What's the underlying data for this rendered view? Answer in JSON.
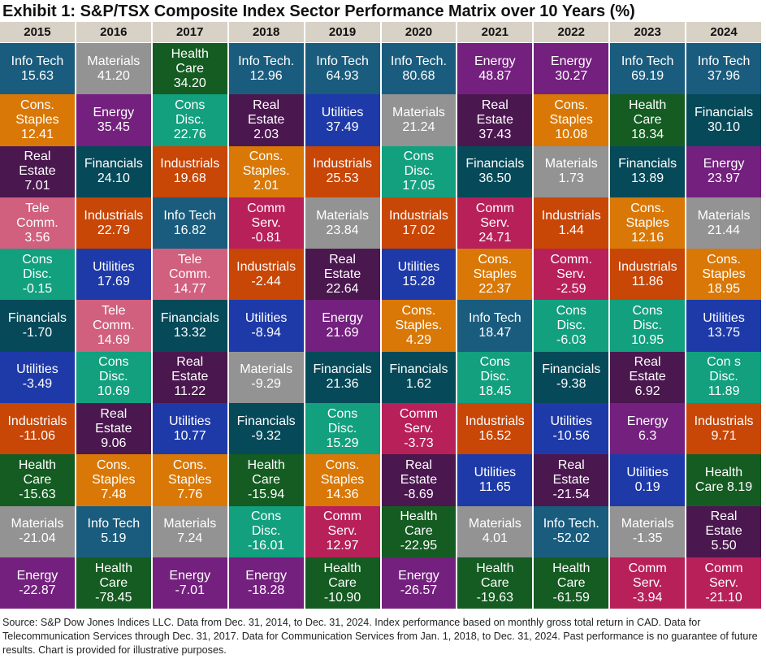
{
  "chart_data": {
    "type": "table",
    "title": "Exhibit 1: S&P/TSX Composite Index Sector Performance Matrix over 10 Years (%)",
    "sector_colors": {
      "Info Tech": "#1a5c7e",
      "Materials": "#939393",
      "Health Care": "#155c22",
      "Cons Staples": "#d97806",
      "Energy": "#74207e",
      "Cons Disc": "#12a07e",
      "Real Estate": "#4a174f",
      "Utilities": "#1e3aa8",
      "Financials": "#064959",
      "Industrials": "#c84606",
      "Tele Comm": "#d0607e",
      "Comm Serv": "#b8205a"
    },
    "columns": [
      {
        "year": "2015",
        "cells": [
          {
            "sector": "Info Tech",
            "label": "Info Tech",
            "value": "15.63"
          },
          {
            "sector": "Cons Staples",
            "label": "Cons.\nStaples",
            "value": "12.41"
          },
          {
            "sector": "Real Estate",
            "label": "Real\nEstate",
            "value": "7.01"
          },
          {
            "sector": "Tele Comm",
            "label": "Tele\nComm.",
            "value": "3.56"
          },
          {
            "sector": "Cons Disc",
            "label": "Cons\nDisc.",
            "value": "-0.15"
          },
          {
            "sector": "Financials",
            "label": "Financials",
            "value": "-1.70"
          },
          {
            "sector": "Utilities",
            "label": "Utilities",
            "value": "-3.49"
          },
          {
            "sector": "Industrials",
            "label": "Industrials",
            "value": "-11.06"
          },
          {
            "sector": "Health Care",
            "label": "Health\nCare",
            "value": "-15.63"
          },
          {
            "sector": "Materials",
            "label": "Materials",
            "value": "-21.04"
          },
          {
            "sector": "Energy",
            "label": "Energy",
            "value": "-22.87"
          }
        ]
      },
      {
        "year": "2016",
        "cells": [
          {
            "sector": "Materials",
            "label": "Materials",
            "value": "41.20"
          },
          {
            "sector": "Energy",
            "label": "Energy",
            "value": "35.45"
          },
          {
            "sector": "Financials",
            "label": "Financials",
            "value": "24.10"
          },
          {
            "sector": "Industrials",
            "label": "Industrials",
            "value": "22.79"
          },
          {
            "sector": "Utilities",
            "label": "Utilities",
            "value": "17.69"
          },
          {
            "sector": "Tele Comm",
            "label": "Tele\nComm.",
            "value": "14.69"
          },
          {
            "sector": "Cons Disc",
            "label": "Cons\nDisc.",
            "value": "10.69"
          },
          {
            "sector": "Real Estate",
            "label": "Real\nEstate",
            "value": "9.06"
          },
          {
            "sector": "Cons Staples",
            "label": "Cons.\nStaples",
            "value": "7.48"
          },
          {
            "sector": "Info Tech",
            "label": "Info Tech",
            "value": "5.19"
          },
          {
            "sector": "Health Care",
            "label": "Health\nCare",
            "value": "-78.45"
          }
        ]
      },
      {
        "year": "2017",
        "cells": [
          {
            "sector": "Health Care",
            "label": "Health\nCare",
            "value": "34.20"
          },
          {
            "sector": "Cons Disc",
            "label": "Cons\nDisc.",
            "value": "22.76"
          },
          {
            "sector": "Industrials",
            "label": "Industrials",
            "value": "19.68"
          },
          {
            "sector": "Info Tech",
            "label": "Info Tech",
            "value": "16.82"
          },
          {
            "sector": "Tele Comm",
            "label": "Tele\nComm.",
            "value": "14.77"
          },
          {
            "sector": "Financials",
            "label": "Financials",
            "value": "13.32"
          },
          {
            "sector": "Real Estate",
            "label": "Real\nEstate",
            "value": "11.22"
          },
          {
            "sector": "Utilities",
            "label": "Utilities",
            "value": "10.77"
          },
          {
            "sector": "Cons Staples",
            "label": "Cons.\nStaples",
            "value": "7.76"
          },
          {
            "sector": "Materials",
            "label": "Materials",
            "value": "7.24"
          },
          {
            "sector": "Energy",
            "label": "Energy",
            "value": "-7.01"
          }
        ]
      },
      {
        "year": "2018",
        "cells": [
          {
            "sector": "Info Tech",
            "label": "Info Tech.",
            "value": "12.96"
          },
          {
            "sector": "Real Estate",
            "label": "Real\nEstate",
            "value": "2.03"
          },
          {
            "sector": "Cons Staples",
            "label": "Cons.\nStaples.",
            "value": "2.01"
          },
          {
            "sector": "Comm Serv",
            "label": "Comm\nServ.",
            "value": "-0.81"
          },
          {
            "sector": "Industrials",
            "label": "Industrials",
            "value": "-2.44"
          },
          {
            "sector": "Utilities",
            "label": "Utilities",
            "value": "-8.94"
          },
          {
            "sector": "Materials",
            "label": "Materials",
            "value": "-9.29"
          },
          {
            "sector": "Financials",
            "label": "Financials",
            "value": "-9.32"
          },
          {
            "sector": "Health Care",
            "label": "Health\nCare",
            "value": "-15.94"
          },
          {
            "sector": "Cons Disc",
            "label": "Cons\nDisc.",
            "value": "-16.01"
          },
          {
            "sector": "Energy",
            "label": "Energy",
            "value": "-18.28"
          }
        ]
      },
      {
        "year": "2019",
        "cells": [
          {
            "sector": "Info Tech",
            "label": "Info Tech",
            "value": "64.93"
          },
          {
            "sector": "Utilities",
            "label": "Utilities",
            "value": "37.49"
          },
          {
            "sector": "Industrials",
            "label": "Industrials",
            "value": "25.53"
          },
          {
            "sector": "Materials",
            "label": "Materials",
            "value": "23.84"
          },
          {
            "sector": "Real Estate",
            "label": "Real\nEstate",
            "value": "22.64"
          },
          {
            "sector": "Energy",
            "label": "Energy",
            "value": "21.69"
          },
          {
            "sector": "Financials",
            "label": "Financials",
            "value": "21.36"
          },
          {
            "sector": "Cons Disc",
            "label": "Cons\nDisc.",
            "value": "15.29"
          },
          {
            "sector": "Cons Staples",
            "label": "Cons.\nStaples",
            "value": "14.36"
          },
          {
            "sector": "Comm Serv",
            "label": "Comm\nServ.",
            "value": "12.97"
          },
          {
            "sector": "Health Care",
            "label": "Health\nCare",
            "value": "-10.90"
          }
        ]
      },
      {
        "year": "2020",
        "cells": [
          {
            "sector": "Info Tech",
            "label": "Info Tech.",
            "value": "80.68"
          },
          {
            "sector": "Materials",
            "label": "Materials",
            "value": "21.24"
          },
          {
            "sector": "Cons Disc",
            "label": "Cons\nDisc.",
            "value": "17.05"
          },
          {
            "sector": "Industrials",
            "label": "Industrials",
            "value": "17.02"
          },
          {
            "sector": "Utilities",
            "label": "Utilities",
            "value": "15.28"
          },
          {
            "sector": "Cons Staples",
            "label": "Cons.\nStaples.",
            "value": "4.29"
          },
          {
            "sector": "Financials",
            "label": "Financials",
            "value": "1.62"
          },
          {
            "sector": "Comm Serv",
            "label": "Comm\nServ.",
            "value": "-3.73"
          },
          {
            "sector": "Real Estate",
            "label": "Real\nEstate",
            "value": "-8.69"
          },
          {
            "sector": "Health Care",
            "label": "Health\nCare",
            "value": "-22.95"
          },
          {
            "sector": "Energy",
            "label": "Energy",
            "value": "-26.57"
          }
        ]
      },
      {
        "year": "2021",
        "cells": [
          {
            "sector": "Energy",
            "label": "Energy",
            "value": "48.87"
          },
          {
            "sector": "Real Estate",
            "label": "Real\nEstate",
            "value": "37.43"
          },
          {
            "sector": "Financials",
            "label": "Financials",
            "value": "36.50"
          },
          {
            "sector": "Comm Serv",
            "label": "Comm\nServ.",
            "value": "24.71"
          },
          {
            "sector": "Cons Staples",
            "label": "Cons.\nStaples",
            "value": "22.37"
          },
          {
            "sector": "Info Tech",
            "label": "Info Tech",
            "value": "18.47"
          },
          {
            "sector": "Cons Disc",
            "label": "Cons\nDisc.",
            "value": "18.45"
          },
          {
            "sector": "Industrials",
            "label": "Industrials",
            "value": "16.52"
          },
          {
            "sector": "Utilities",
            "label": "Utilities",
            "value": "11.65"
          },
          {
            "sector": "Materials",
            "label": "Materials",
            "value": "4.01"
          },
          {
            "sector": "Health Care",
            "label": "Health\nCare",
            "value": "-19.63"
          }
        ]
      },
      {
        "year": "2022",
        "cells": [
          {
            "sector": "Energy",
            "label": "Energy",
            "value": "30.27"
          },
          {
            "sector": "Cons Staples",
            "label": "Cons.\nStaples",
            "value": "10.08"
          },
          {
            "sector": "Materials",
            "label": "Materials",
            "value": "1.73"
          },
          {
            "sector": "Industrials",
            "label": "Industrials",
            "value": "1.44"
          },
          {
            "sector": "Comm Serv",
            "label": "Comm.\nServ.",
            "value": "-2.59"
          },
          {
            "sector": "Cons Disc",
            "label": "Cons\nDisc.",
            "value": "-6.03"
          },
          {
            "sector": "Financials",
            "label": "Financials",
            "value": "-9.38"
          },
          {
            "sector": "Utilities",
            "label": "Utilities",
            "value": "-10.56"
          },
          {
            "sector": "Real Estate",
            "label": "Real\nEstate",
            "value": "-21.54"
          },
          {
            "sector": "Info Tech",
            "label": "Info Tech.",
            "value": "-52.02"
          },
          {
            "sector": "Health Care",
            "label": "Health\nCare",
            "value": "-61.59"
          }
        ]
      },
      {
        "year": "2023",
        "cells": [
          {
            "sector": "Info Tech",
            "label": "Info Tech",
            "value": "69.19"
          },
          {
            "sector": "Health Care",
            "label": "Health\nCare",
            "value": "18.34"
          },
          {
            "sector": "Financials",
            "label": "Financials",
            "value": "13.89"
          },
          {
            "sector": "Cons Staples",
            "label": "Cons.\nStaples",
            "value": "12.16"
          },
          {
            "sector": "Industrials",
            "label": "Industrials",
            "value": "11.86"
          },
          {
            "sector": "Cons Disc",
            "label": "Cons\nDisc.",
            "value": "10.95"
          },
          {
            "sector": "Real Estate",
            "label": "Real\nEstate",
            "value": "6.92"
          },
          {
            "sector": "Energy",
            "label": "Energy",
            "value": "6.3"
          },
          {
            "sector": "Utilities",
            "label": "Utilities",
            "value": "0.19"
          },
          {
            "sector": "Materials",
            "label": "Materials",
            "value": "-1.35"
          },
          {
            "sector": "Comm Serv",
            "label": "Comm\nServ.",
            "value": "-3.94"
          }
        ]
      },
      {
        "year": "2024",
        "cells": [
          {
            "sector": "Info Tech",
            "label": "Info Tech",
            "value": "37.96"
          },
          {
            "sector": "Financials",
            "label": "Financials",
            "value": "30.10"
          },
          {
            "sector": "Energy",
            "label": "Energy",
            "value": "23.97"
          },
          {
            "sector": "Materials",
            "label": "Materials",
            "value": "21.44"
          },
          {
            "sector": "Cons Staples",
            "label": "Cons.\nStaples",
            "value": "18.95"
          },
          {
            "sector": "Utilities",
            "label": "Utilities",
            "value": "13.75"
          },
          {
            "sector": "Cons Disc",
            "label": "Con s\nDisc.",
            "value": "11.89"
          },
          {
            "sector": "Industrials",
            "label": "Industrials",
            "value": "9.71"
          },
          {
            "sector": "Health Care",
            "label": "Health\nCare 8.19",
            "value": ""
          },
          {
            "sector": "Real Estate",
            "label": "Real\nEstate",
            "value": "5.50"
          },
          {
            "sector": "Comm Serv",
            "label": "Comm\nServ.",
            "value": "-21.10"
          }
        ]
      }
    ]
  },
  "source": "Source: S&P Dow Jones Indices LLC. Data from Dec. 31, 2014, to Dec. 31, 2024. Index performance based on monthly gross total return in CAD. Data for Telecommunication Services through Dec. 31, 2017. Data for Communication Services from Jan. 1, 2018, to Dec. 31, 2024. Past performance is no guarantee of future results. Chart is provided for illustrative purposes."
}
